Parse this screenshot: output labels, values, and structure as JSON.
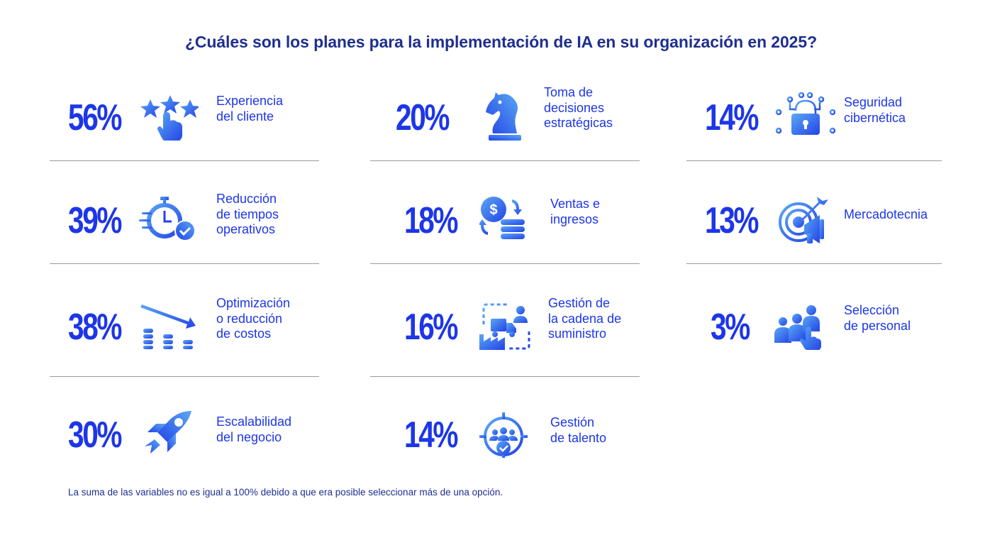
{
  "chart_data": {
    "type": "table",
    "title": "¿Cuáles son los planes para la implementación de IA en su organización en 2025?",
    "categories": [
      "Experiencia del cliente",
      "Reducción de tiempos operativos",
      "Optimización o reducción de costos",
      "Escalabilidad del negocio",
      "Toma de decisiones estratégicas",
      "Ventas e ingresos",
      "Gestión de la cadena de suministro",
      "Gestión de talento",
      "Seguridad cibernética",
      "Mercadotecnia",
      "Selección de personal"
    ],
    "values": [
      56,
      39,
      38,
      30,
      20,
      18,
      16,
      14,
      14,
      13,
      3
    ],
    "items": [
      {
        "value": "56%",
        "label": "Experiencia\ndel cliente",
        "icon": "star-rating-hand-icon"
      },
      {
        "value": "39%",
        "label": "Reducción\nde tiempos\noperativos",
        "icon": "stopwatch-check-icon"
      },
      {
        "value": "38%",
        "label": "Optimización\no reducción\nde costos",
        "icon": "cost-down-coins-icon"
      },
      {
        "value": "30%",
        "label": "Escalabilidad\ndel negocio",
        "icon": "rocket-icon"
      },
      {
        "value": "20%",
        "label": "Toma de\ndecisiones\nestratégicas",
        "icon": "chess-knight-icon"
      },
      {
        "value": "18%",
        "label": "Ventas e\ningresos",
        "icon": "dollar-coins-cycle-icon"
      },
      {
        "value": "16%",
        "label": "Gestión de\nla cadena de\nsuministro",
        "icon": "supply-chain-icon"
      },
      {
        "value": "14%",
        "label": "Gestión\nde talento",
        "icon": "talent-target-icon"
      },
      {
        "value": "14%",
        "label": "Seguridad\ncibernética",
        "icon": "circuit-lock-icon"
      },
      {
        "value": "13%",
        "label": "Mercadotecnia",
        "icon": "target-megaphone-icon"
      },
      {
        "value": "3%",
        "label": "Selección\nde personal",
        "icon": "people-select-icon"
      }
    ],
    "footnote": "La suma de las variables no es igual a 100% debido a que era posible seleccionar más de una opción."
  },
  "colors": {
    "accent": "#1d36e8",
    "title": "#1e2f8f",
    "icon_light": "#5aa8f5",
    "icon_dark": "#2343e6",
    "rule": "#9a9a9a"
  }
}
